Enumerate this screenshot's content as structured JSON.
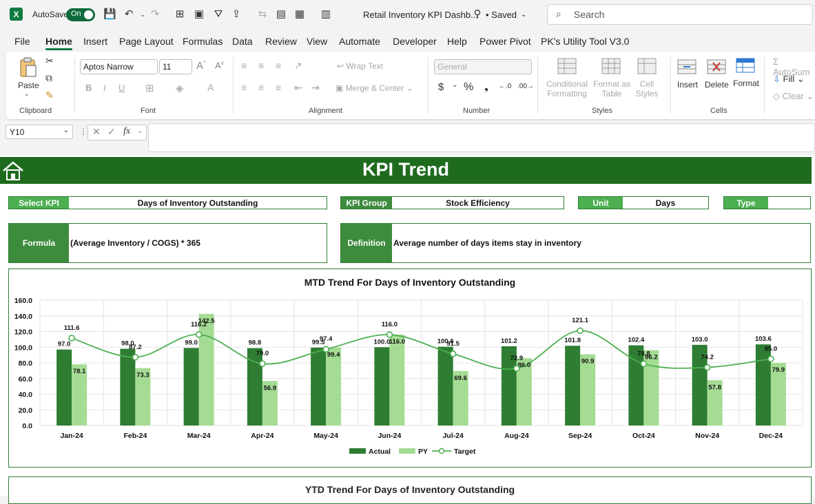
{
  "titlebar": {
    "app_logo": "X",
    "autosave_label": "AutoSave",
    "autosave_state": "On",
    "doc_title": "Retail Inventory KPI Dashb...",
    "saved_status": "• Saved",
    "search_placeholder": "Search"
  },
  "menu": {
    "items": [
      "File",
      "Home",
      "Insert",
      "Page Layout",
      "Formulas",
      "Data",
      "Review",
      "View",
      "Automate",
      "Developer",
      "Help",
      "Power Pivot",
      "PK's Utility Tool V3.0"
    ],
    "active": "Home"
  },
  "ribbon": {
    "paste": "Paste",
    "clipboard": "Clipboard",
    "font_name": "Aptos Narrow",
    "font_size": "11",
    "font": "Font",
    "wrap_text": "Wrap Text",
    "merge_center": "Merge & Center",
    "alignment": "Alignment",
    "number_format": "General",
    "number": "Number",
    "cond_format_1": "Conditional",
    "cond_format_2": "Formatting",
    "format_table_1": "Format as",
    "format_table_2": "Table",
    "cell_styles_1": "Cell",
    "cell_styles_2": "Styles",
    "styles": "Styles",
    "insert": "Insert",
    "delete": "Delete",
    "format": "Format",
    "cells": "Cells",
    "autosum": "AutoSum",
    "fill": "Fill",
    "clear": "Clear",
    "bold": "B",
    "italic": "I",
    "underline": "U"
  },
  "formula_bar": {
    "name_box": "Y10",
    "fx": "fx"
  },
  "sheet": {
    "banner_title": "KPI Trend",
    "select_kpi_label": "Select KPI",
    "select_kpi_value": "Days of Inventory Outstanding",
    "kpi_group_label": "KPI Group",
    "kpi_group_value": "Stock Efficiency",
    "unit_label": "Unit",
    "unit_value": "Days",
    "type_label": "Type",
    "type_value": "",
    "formula_label": "Formula",
    "formula_value": "(Average Inventory / COGS) * 365",
    "definition_label": "Definition",
    "definition_value": "Average number of days items stay in inventory",
    "chart2_title": "YTD Trend For Days of Inventory Outstanding"
  },
  "colors": {
    "actual": "#2e7d32",
    "py": "#a5dc94",
    "target": "#4caf50",
    "banner": "#1e6b1e"
  },
  "chart_data": {
    "type": "bar",
    "title": "MTD Trend For Days of Inventory Outstanding",
    "categories": [
      "Jan-24",
      "Feb-24",
      "Mar-24",
      "Apr-24",
      "May-24",
      "Jun-24",
      "Jul-24",
      "Aug-24",
      "Sep-24",
      "Oct-24",
      "Nov-24",
      "Dec-24"
    ],
    "series": [
      {
        "name": "Actual",
        "type": "bar",
        "values": [
          97.0,
          98.0,
          99.0,
          98.8,
          99.5,
          100.0,
          100.6,
          101.2,
          101.8,
          102.4,
          103.0,
          103.6
        ]
      },
      {
        "name": "PY",
        "type": "bar",
        "values": [
          78.1,
          73.3,
          142.5,
          56.9,
          99.4,
          116.0,
          69.6,
          86.0,
          90.9,
          96.2,
          57.8,
          79.9
        ]
      },
      {
        "name": "Target",
        "type": "line",
        "values": [
          111.6,
          87.2,
          116.2,
          79.0,
          97.4,
          116.0,
          91.5,
          72.9,
          121.1,
          78.8,
          74.2,
          85.0
        ]
      }
    ],
    "yticks": [
      "0.0",
      "20.0",
      "40.0",
      "60.0",
      "80.0",
      "100.0",
      "120.0",
      "140.0",
      "160.0"
    ],
    "ylim": [
      0,
      160
    ],
    "legend": "bottom",
    "grid": true
  }
}
